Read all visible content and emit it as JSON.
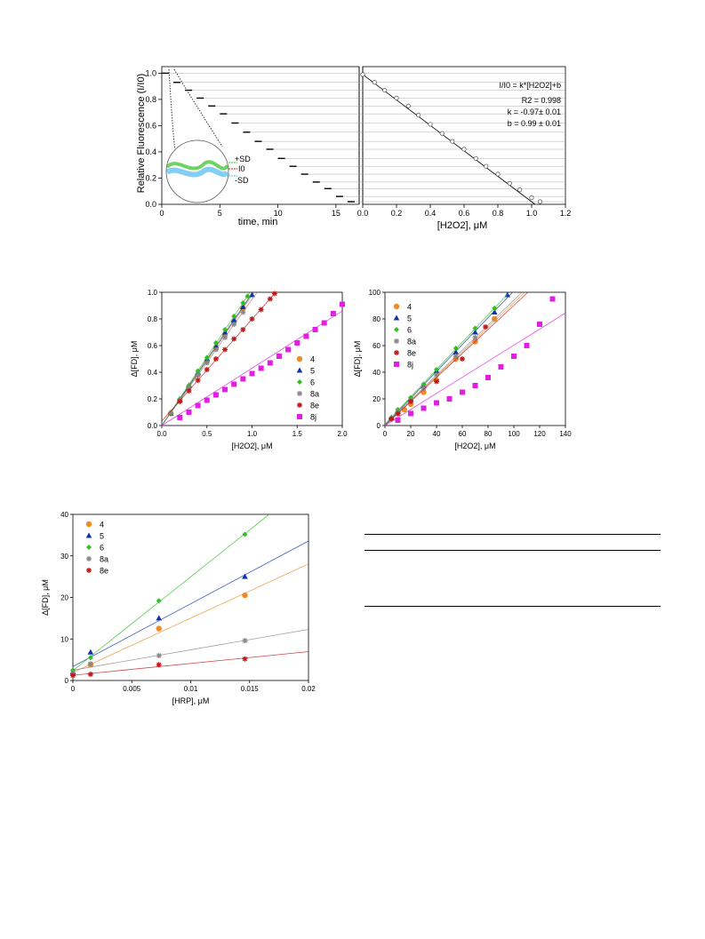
{
  "figure_top": {
    "left_panel": {
      "ylabel": "Relative Fluorescence (I/I0)",
      "xlabel": "time, min",
      "xticks": [
        "0",
        "5",
        "10",
        "15"
      ],
      "yticks": [
        "0.0",
        "0.2",
        "0.4",
        "0.6",
        "0.8",
        "1.0"
      ],
      "inset_labels": {
        "plus_sd": "+SD",
        "i0": "I0",
        "minus_sd": "-SD"
      }
    },
    "right_panel": {
      "xlabel": "[H2O2], μM",
      "xticks": [
        "0.0",
        "0.2",
        "0.4",
        "0.6",
        "0.8",
        "1.0",
        "1.2"
      ],
      "eq_line1": "I/I0 = k*[H2O2]+b",
      "eq_line2": "R2 = 0.998",
      "eq_line3": "k = -0.97± 0.01",
      "eq_line4": "b = 0.99 ± 0.01"
    }
  },
  "chart_data": [
    {
      "type": "line",
      "xlabel": "time, min",
      "ylabel": "Relative Fluorescence (I/I0)",
      "xlim": [
        0,
        17
      ],
      "ylim": [
        0,
        1.05
      ],
      "series": [
        {
          "x": [
            0,
            1,
            2,
            3,
            4,
            5,
            6,
            7,
            8,
            9,
            10,
            11,
            12,
            13,
            14,
            15,
            16
          ],
          "y": [
            1.0,
            0.93,
            0.87,
            0.81,
            0.75,
            0.69,
            0.62,
            0.55,
            0.48,
            0.42,
            0.35,
            0.29,
            0.23,
            0.17,
            0.12,
            0.06,
            0.02
          ]
        }
      ]
    },
    {
      "type": "scatter",
      "xlabel": "[H2O2], μM",
      "xlim": [
        0,
        1.2
      ],
      "ylim": [
        0,
        1.05
      ],
      "series": [
        {
          "x": [
            0.0,
            0.07,
            0.13,
            0.2,
            0.27,
            0.33,
            0.4,
            0.47,
            0.53,
            0.6,
            0.67,
            0.73,
            0.8,
            0.87,
            0.93,
            1.0,
            1.05
          ],
          "y": [
            0.99,
            0.93,
            0.87,
            0.81,
            0.75,
            0.68,
            0.61,
            0.54,
            0.48,
            0.42,
            0.35,
            0.29,
            0.23,
            0.16,
            0.11,
            0.05,
            0.02
          ]
        }
      ]
    },
    {
      "type": "scatter",
      "xlabel": "[H2O2], μM",
      "ylabel": "Δ[FD], μM",
      "xlim": [
        0,
        2.0
      ],
      "ylim": [
        0,
        1.0
      ],
      "xticks": [
        "0.0",
        "0.5",
        "1.0",
        "1.5",
        "2.0"
      ],
      "yticks": [
        "0.0",
        "0.2",
        "0.4",
        "0.6",
        "0.8",
        "1.0"
      ],
      "series": [
        {
          "name": "4",
          "color": "#f08a24",
          "x": [
            0.1,
            0.2,
            0.3,
            0.4,
            0.5,
            0.6,
            0.7,
            0.8,
            0.9
          ],
          "y": [
            0.09,
            0.19,
            0.29,
            0.38,
            0.48,
            0.58,
            0.68,
            0.78,
            0.88
          ]
        },
        {
          "name": "5",
          "color": "#1030b0",
          "x": [
            0.1,
            0.2,
            0.3,
            0.4,
            0.5,
            0.6,
            0.7,
            0.8,
            0.9,
            1.0
          ],
          "y": [
            0.09,
            0.19,
            0.3,
            0.4,
            0.5,
            0.6,
            0.7,
            0.79,
            0.89,
            0.98
          ]
        },
        {
          "name": "6",
          "color": "#30c020",
          "x": [
            0.1,
            0.2,
            0.3,
            0.4,
            0.5,
            0.6,
            0.7,
            0.8,
            0.9,
            0.95
          ],
          "y": [
            0.1,
            0.2,
            0.3,
            0.41,
            0.51,
            0.62,
            0.72,
            0.82,
            0.92,
            0.97
          ]
        },
        {
          "name": "8a",
          "color": "#888888",
          "x": [
            0.1,
            0.2,
            0.3,
            0.4,
            0.5,
            0.6,
            0.7,
            0.8,
            0.9
          ],
          "y": [
            0.09,
            0.19,
            0.28,
            0.38,
            0.47,
            0.57,
            0.66,
            0.76,
            0.85
          ]
        },
        {
          "name": "8e",
          "color": "#c01818",
          "x": [
            0.2,
            0.3,
            0.4,
            0.5,
            0.6,
            0.7,
            0.8,
            0.9,
            1.0,
            1.1,
            1.2,
            1.25
          ],
          "y": [
            0.18,
            0.26,
            0.34,
            0.42,
            0.5,
            0.57,
            0.65,
            0.72,
            0.8,
            0.87,
            0.95,
            0.99
          ]
        },
        {
          "name": "8j",
          "color": "#e020e0",
          "x": [
            0.2,
            0.3,
            0.4,
            0.5,
            0.6,
            0.7,
            0.8,
            0.9,
            1.0,
            1.1,
            1.2,
            1.3,
            1.4,
            1.5,
            1.6,
            1.7,
            1.8,
            1.9,
            2.0
          ],
          "y": [
            0.06,
            0.1,
            0.15,
            0.19,
            0.23,
            0.27,
            0.31,
            0.35,
            0.39,
            0.43,
            0.47,
            0.52,
            0.57,
            0.62,
            0.67,
            0.72,
            0.77,
            0.84,
            0.91
          ]
        }
      ]
    },
    {
      "type": "scatter",
      "xlabel": "[H2O2], μM",
      "ylabel": "Δ[FD], μM",
      "xlim": [
        0,
        140
      ],
      "ylim": [
        0,
        100
      ],
      "xticks": [
        "0",
        "20",
        "40",
        "60",
        "80",
        "100",
        "120",
        "140"
      ],
      "yticks": [
        "0",
        "20",
        "40",
        "60",
        "80",
        "100"
      ],
      "series": [
        {
          "name": "4",
          "color": "#f08a24",
          "x": [
            5,
            10,
            15,
            20,
            30,
            40,
            55,
            70,
            85
          ],
          "y": [
            5,
            9,
            12,
            16,
            25,
            34,
            50,
            63,
            80
          ]
        },
        {
          "name": "5",
          "color": "#1030b0",
          "x": [
            5,
            10,
            20,
            30,
            40,
            55,
            70,
            85,
            95
          ],
          "y": [
            6,
            11,
            20,
            30,
            41,
            55,
            70,
            85,
            98
          ]
        },
        {
          "name": "6",
          "color": "#30c020",
          "x": [
            5,
            10,
            20,
            30,
            40,
            55,
            70,
            85
          ],
          "y": [
            6,
            12,
            21,
            31,
            42,
            58,
            73,
            88
          ]
        },
        {
          "name": "8a",
          "color": "#888888",
          "x": [
            5,
            10,
            20,
            30,
            40,
            55,
            70
          ],
          "y": [
            5,
            10,
            19,
            28,
            38,
            52,
            66
          ]
        },
        {
          "name": "8e",
          "color": "#c01818",
          "x": [
            5,
            10,
            20,
            40,
            60,
            78
          ],
          "y": [
            5,
            9,
            18,
            33,
            50,
            74
          ]
        },
        {
          "name": "8j",
          "color": "#e020e0",
          "x": [
            10,
            20,
            30,
            40,
            50,
            60,
            70,
            80,
            90,
            100,
            110,
            120,
            130
          ],
          "y": [
            4,
            9,
            13,
            17,
            20,
            25,
            30,
            36,
            44,
            52,
            60,
            76,
            95
          ]
        }
      ]
    },
    {
      "type": "scatter",
      "xlabel": "[HRP], μM",
      "ylabel": "Δ[FD], μM",
      "xlim": [
        0,
        0.02
      ],
      "ylim": [
        0,
        40
      ],
      "xticks": [
        "0",
        "0.005",
        "0.01",
        "0.015",
        "0.02"
      ],
      "yticks": [
        "0",
        "10",
        "20",
        "30",
        "40"
      ],
      "series": [
        {
          "name": "4",
          "color": "#f08a24",
          "x": [
            0,
            0.0015,
            0.0073,
            0.0146
          ],
          "y": [
            1.5,
            3.8,
            12.5,
            20.5
          ]
        },
        {
          "name": "5",
          "color": "#1030b0",
          "x": [
            0,
            0.0015,
            0.0073,
            0.0146
          ],
          "y": [
            2,
            6.8,
            15,
            25
          ]
        },
        {
          "name": "6",
          "color": "#30c020",
          "x": [
            0,
            0.0015,
            0.0073,
            0.0146
          ],
          "y": [
            2.5,
            5.5,
            19.2,
            35.2
          ]
        },
        {
          "name": "8a",
          "color": "#888888",
          "x": [
            0,
            0.0015,
            0.0073,
            0.0146
          ],
          "y": [
            1.8,
            4,
            6,
            9.6
          ]
        },
        {
          "name": "8e",
          "color": "#c01818",
          "x": [
            0,
            0.0015,
            0.0073,
            0.0146
          ],
          "y": [
            1.2,
            1.5,
            3.8,
            5.2
          ]
        }
      ]
    }
  ]
}
